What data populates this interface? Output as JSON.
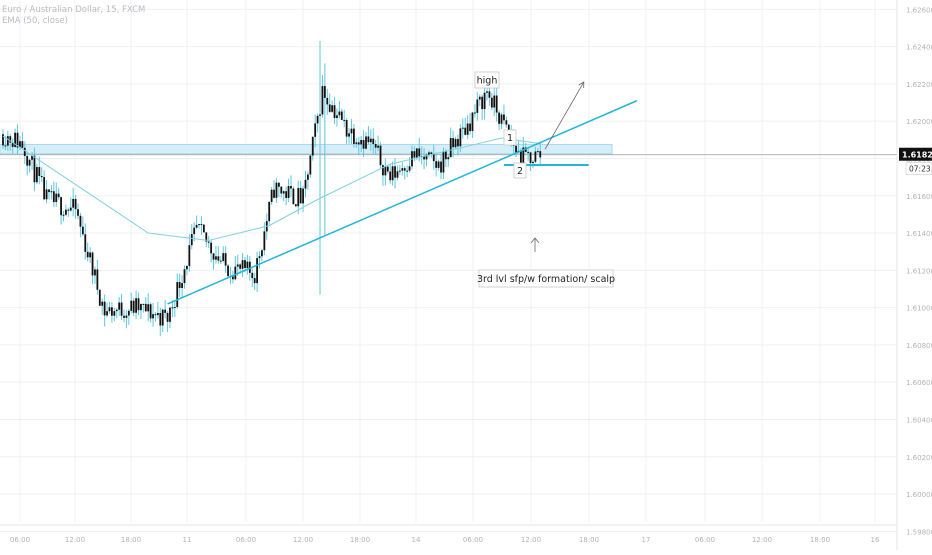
{
  "legend": {
    "symbol_line": "Euro / Australian Dollar, 15, FXCM",
    "indicator_line": "EMA (50, close)"
  },
  "colors": {
    "candle": "#111111",
    "wick": "#5fc6e0",
    "ema": "#7fd1e2",
    "trendline": "#21b5d6",
    "zone_fill": "#d6eef8",
    "zone_border": "#a9d9ee",
    "price_line": "#9a9a9a",
    "grid": "#f0f0f0",
    "axis_text": "#b3b3b3",
    "price_label_bg": "#111111",
    "price_label_text": "#ffffff"
  },
  "price_axis": {
    "range": [
      1.5985,
      1.6265
    ],
    "ticks": [
      "1.62600",
      "1.62400",
      "1.62200",
      "1.62000",
      "1.61800",
      "1.61600",
      "1.61400",
      "1.61200",
      "1.61000",
      "1.60800",
      "1.60600",
      "1.60400",
      "1.60200",
      "1.60000",
      "1.59800"
    ],
    "current_price_label": "1.61820",
    "countdown_label": "07:23"
  },
  "time_axis": {
    "labels": [
      "06:00",
      "12:00",
      "18:00",
      "11",
      "06:00",
      "12:00",
      "18:00",
      "14",
      "06:00",
      "12:00",
      "18:00",
      "17",
      "06:00",
      "12:00",
      "18:00",
      "16"
    ]
  },
  "annotations": {
    "high_label": "high",
    "label_1": "1",
    "label_2": "2",
    "note": "3rd lvl sfp/w formation/ scalp"
  },
  "chart_data": {
    "type": "candlestick",
    "title": "Euro / Australian Dollar, 15, FXCM",
    "indicator": "EMA (50, close)",
    "y_range": [
      1.5985,
      1.6265
    ],
    "current_price": 1.6182,
    "close_path": [
      {
        "i": 0,
        "price": 1.6193
      },
      {
        "i": 8,
        "price": 1.6188
      },
      {
        "i": 18,
        "price": 1.6158
      },
      {
        "i": 30,
        "price": 1.6152
      },
      {
        "i": 42,
        "price": 1.6098
      },
      {
        "i": 55,
        "price": 1.61
      },
      {
        "i": 68,
        "price": 1.6094
      },
      {
        "i": 80,
        "price": 1.6142
      },
      {
        "i": 92,
        "price": 1.6122
      },
      {
        "i": 104,
        "price": 1.6118
      },
      {
        "i": 112,
        "price": 1.6164
      },
      {
        "i": 124,
        "price": 1.6158
      },
      {
        "i": 132,
        "price": 1.6216
      },
      {
        "i": 142,
        "price": 1.6196
      },
      {
        "i": 152,
        "price": 1.6188
      },
      {
        "i": 160,
        "price": 1.617
      },
      {
        "i": 170,
        "price": 1.6182
      },
      {
        "i": 180,
        "price": 1.6176
      },
      {
        "i": 192,
        "price": 1.6198
      },
      {
        "i": 200,
        "price": 1.6216
      },
      {
        "i": 206,
        "price": 1.62
      },
      {
        "i": 214,
        "price": 1.618
      },
      {
        "i": 222,
        "price": 1.6182
      }
    ],
    "extreme_wicks": [
      {
        "i": 131,
        "high": 1.6243,
        "low": 1.6107
      },
      {
        "i": 133,
        "high": 1.6231,
        "low": 1.6139
      }
    ],
    "ema_path": [
      {
        "i": 0,
        "price": 1.6192
      },
      {
        "i": 30,
        "price": 1.6166
      },
      {
        "i": 60,
        "price": 1.614
      },
      {
        "i": 85,
        "price": 1.6136
      },
      {
        "i": 110,
        "price": 1.6144
      },
      {
        "i": 130,
        "price": 1.6158
      },
      {
        "i": 160,
        "price": 1.6177
      },
      {
        "i": 190,
        "price": 1.6186
      },
      {
        "i": 206,
        "price": 1.6191
      },
      {
        "i": 222,
        "price": 1.6188
      }
    ],
    "trendline": {
      "from": {
        "i": 68,
        "price": 1.6102
      },
      "to": {
        "i": 262,
        "price": 1.6211
      }
    },
    "resistance_zone": [
      1.61825,
      1.61875
    ],
    "support_line": {
      "from_i": 207,
      "to_i": 242,
      "price": 1.61765
    },
    "projection_arrow": {
      "from": {
        "i": 224,
        "price": 1.6185
      },
      "to": {
        "i": 240,
        "price": 1.6221
      }
    }
  }
}
